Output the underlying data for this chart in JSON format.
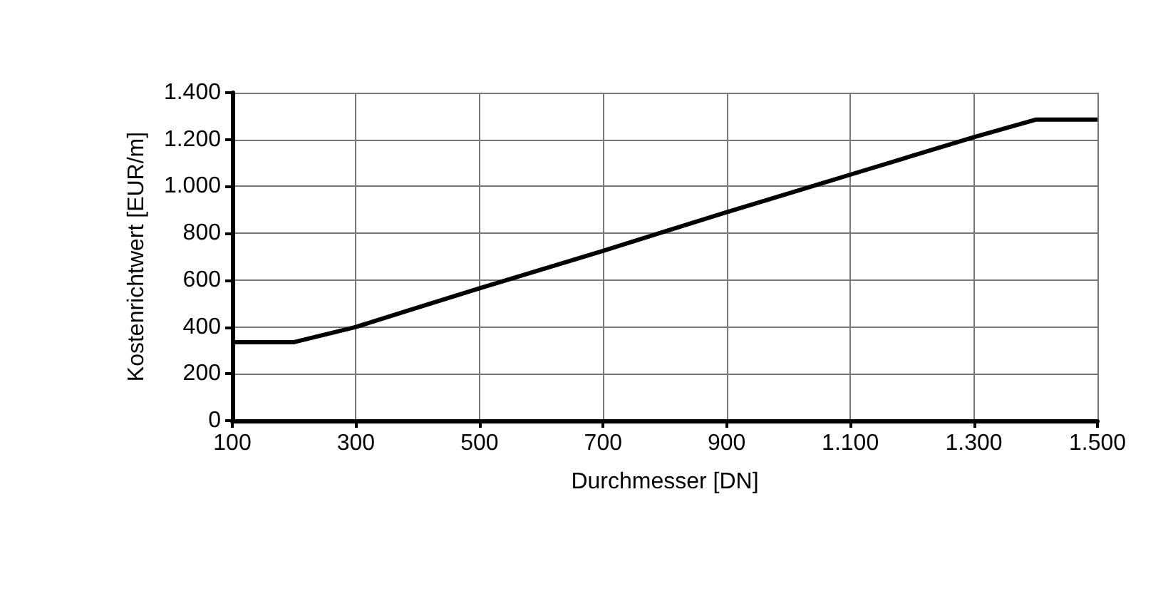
{
  "chart_data": {
    "type": "line",
    "xlabel": "Durchmesser [DN]",
    "ylabel": "Kostenrichtwert [EUR/m]",
    "x": [
      100,
      200,
      300,
      400,
      500,
      600,
      700,
      800,
      900,
      1000,
      1100,
      1200,
      1300,
      1400,
      1500
    ],
    "series": [
      {
        "color": "#000000",
        "values": [
          335,
          335,
          400,
          483,
          565,
          645,
          725,
          808,
          890,
          970,
          1050,
          1130,
          1210,
          1285,
          1285
        ]
      }
    ],
    "xlim": [
      100,
      1500
    ],
    "xticks": [
      {
        "value": 100,
        "label": "100"
      },
      {
        "value": 300,
        "label": "300"
      },
      {
        "value": 500,
        "label": "500"
      },
      {
        "value": 700,
        "label": "700"
      },
      {
        "value": 900,
        "label": "900"
      },
      {
        "value": 1100,
        "label": "1.100"
      },
      {
        "value": 1300,
        "label": "1.300"
      },
      {
        "value": 1500,
        "label": "1.500"
      }
    ],
    "ylim": [
      0,
      1400
    ],
    "yticks": [
      0,
      200,
      400,
      600,
      800,
      {
        "value": 1000,
        "label": "1.000"
      },
      {
        "value": 1200,
        "label": "1.200"
      },
      {
        "value": 1400,
        "label": "1.400"
      }
    ],
    "grid": true,
    "marker": "none",
    "line_style": "solid"
  }
}
